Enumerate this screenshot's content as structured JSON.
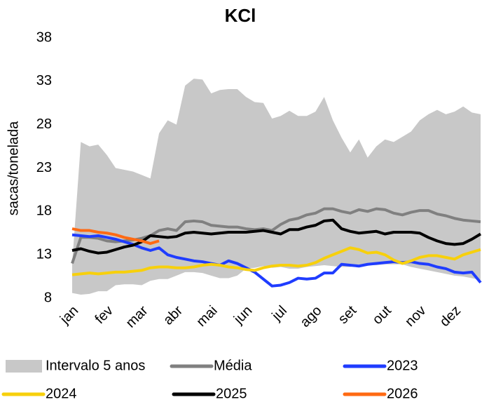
{
  "chart_data": {
    "type": "line",
    "title": "KCl",
    "y_label": "sacas/tonelada",
    "categories": [
      "jan",
      null,
      null,
      null,
      "fev",
      null,
      null,
      null,
      "mar",
      null,
      null,
      null,
      "abr",
      null,
      null,
      null,
      "mai",
      null,
      null,
      null,
      "jun",
      null,
      null,
      null,
      "jul",
      null,
      null,
      null,
      "ago",
      null,
      null,
      null,
      "set",
      null,
      null,
      null,
      "out",
      null,
      null,
      null,
      "nov",
      null,
      null,
      null,
      "dez",
      null,
      null,
      null
    ],
    "ylim": [
      8,
      38
    ],
    "yticks": [
      8,
      13,
      18,
      23,
      28,
      33,
      38
    ],
    "band": {
      "name": "Intervalo 5 anos",
      "color": "#c8c8c8",
      "upper": [
        12,
        26,
        25.5,
        25.7,
        24.5,
        23,
        22.8,
        22.6,
        22.2,
        21.8,
        27,
        28.5,
        28,
        32.5,
        33.3,
        33.2,
        31.6,
        32,
        32.1,
        32.1,
        31.2,
        30.6,
        30.5,
        28.7,
        29,
        29.6,
        29,
        29,
        29.5,
        31.2,
        28.5,
        26.5,
        24.8,
        26.3,
        24.2,
        25.5,
        26.3,
        26,
        26.6,
        27.2,
        28.5,
        29.2,
        29.7,
        29.2,
        29.5,
        30.1,
        29.4,
        29.2
      ],
      "lower": [
        8.6,
        8.4,
        8.5,
        8.8,
        8.8,
        9.5,
        9.6,
        9.6,
        9.5,
        10,
        10.2,
        10.2,
        10.6,
        11,
        11,
        10.9,
        10.6,
        10.3,
        10.3,
        10.6,
        11.4,
        11.5,
        11.7,
        11.5,
        11.6,
        11.4,
        11.4,
        11.6,
        11.7,
        11.8,
        11.7,
        11.6,
        11.6,
        11.8,
        11.8,
        11.8,
        11.9,
        11.9,
        11.9,
        11.6,
        11.4,
        11.2,
        11,
        10.8,
        10.6,
        10.5,
        10.3,
        10.1
      ]
    },
    "series": [
      {
        "name": "Média",
        "color": "#808080",
        "values": [
          12,
          15,
          15,
          14.9,
          14.6,
          14.5,
          14.6,
          14.7,
          14.9,
          15.2,
          15.8,
          16,
          15.8,
          16.8,
          16.9,
          16.8,
          16.4,
          16.3,
          16.2,
          16.2,
          16,
          15.9,
          16,
          15.8,
          16.5,
          17,
          17.2,
          17.6,
          17.8,
          18.3,
          18.3,
          18,
          17.8,
          18.2,
          18,
          18.3,
          18.2,
          17.8,
          17.6,
          17.9,
          18.1,
          18.1,
          17.7,
          17.5,
          17.2,
          17,
          16.9,
          16.8
        ]
      },
      {
        "name": "2023",
        "color": "#1f3cff",
        "values": [
          15.3,
          15.2,
          15.1,
          15.2,
          15,
          14.8,
          14.5,
          14.2,
          13.8,
          13.5,
          13.8,
          13,
          12.7,
          12.5,
          12.3,
          12.2,
          12,
          11.8,
          12.3,
          12,
          11.5,
          11,
          10.2,
          9.4,
          9.5,
          9.8,
          10.3,
          10.2,
          10.3,
          10.9,
          10.9,
          11.9,
          11.8,
          11.7,
          11.9,
          12,
          12.1,
          12.2,
          12.1,
          12.2,
          12,
          11.9,
          11.6,
          11.4,
          11,
          10.9,
          11,
          9.8
        ]
      },
      {
        "name": "2024",
        "color": "#f7d00c",
        "values": [
          10.7,
          10.8,
          10.9,
          10.8,
          10.9,
          11,
          11,
          11.1,
          11.2,
          11.5,
          11.6,
          11.6,
          11.5,
          11.5,
          11.6,
          11.8,
          11.9,
          11.8,
          11.6,
          11.5,
          11.3,
          11.2,
          11.5,
          11.7,
          11.8,
          11.8,
          11.7,
          11.8,
          12.1,
          12.6,
          13,
          13.4,
          13.8,
          13.6,
          13.2,
          13.3,
          13,
          12.4,
          12,
          12.3,
          12.7,
          12.9,
          12.9,
          12.7,
          12.5,
          13,
          13.3,
          13.6
        ]
      },
      {
        "name": "2025",
        "color": "#000000",
        "values": [
          13.5,
          13.7,
          13.4,
          13.2,
          13.3,
          13.6,
          13.9,
          14.1,
          14.5,
          15.2,
          15.1,
          15,
          15.1,
          15.5,
          15.6,
          15.5,
          15.4,
          15.5,
          15.6,
          15.6,
          15.6,
          15.7,
          15.8,
          15.6,
          15.4,
          15.9,
          15.9,
          16.2,
          16.4,
          16.9,
          17,
          16,
          15.7,
          15.5,
          15.6,
          15.7,
          15.4,
          15.6,
          15.6,
          15.6,
          15.5,
          15,
          14.6,
          14.3,
          14.2,
          14.3,
          14.8,
          15.4
        ]
      },
      {
        "name": "2026",
        "color": "#ff6a13",
        "values": [
          16,
          15.8,
          15.8,
          15.6,
          15.5,
          15.3,
          15,
          14.8,
          14.6,
          14.3,
          14.6,
          null,
          null,
          null,
          null,
          null,
          null,
          null,
          null,
          null,
          null,
          null,
          null,
          null,
          null,
          null,
          null,
          null,
          null,
          null,
          null,
          null,
          null,
          null,
          null,
          null,
          null,
          null,
          null,
          null,
          null,
          null,
          null,
          null,
          null,
          null,
          null,
          null
        ]
      }
    ]
  }
}
